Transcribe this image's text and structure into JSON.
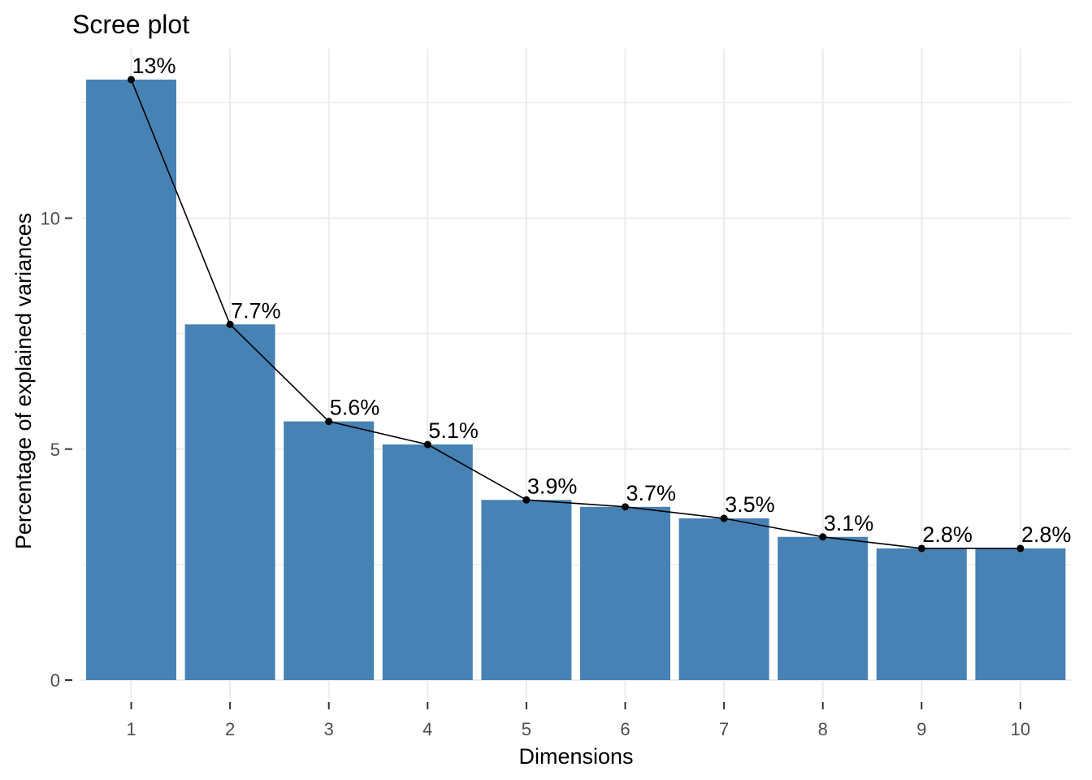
{
  "chart_data": {
    "type": "bar",
    "title": "Scree plot",
    "xlabel": "Dimensions",
    "ylabel": "Percentage of explained variances",
    "categories": [
      "1",
      "2",
      "3",
      "4",
      "5",
      "6",
      "7",
      "8",
      "9",
      "10"
    ],
    "values": [
      13.0,
      7.7,
      5.6,
      5.1,
      3.9,
      3.75,
      3.5,
      3.1,
      2.85,
      2.85
    ],
    "data_labels": [
      "13%",
      "7.7%",
      "5.6%",
      "5.1%",
      "3.9%",
      "3.7%",
      "3.5%",
      "3.1%",
      "2.8%",
      "2.8%"
    ],
    "yticks": [
      0,
      5,
      10
    ],
    "ytick_labels": [
      "0",
      "5",
      "10"
    ],
    "ylim": [
      0,
      13.65
    ],
    "overlay": "line-with-points",
    "grid": true,
    "legend": "none",
    "colors": {
      "bar": "#4682B4",
      "line": "#000000",
      "grid": "#ebebeb",
      "tick_text": "#4d4d4d"
    }
  }
}
